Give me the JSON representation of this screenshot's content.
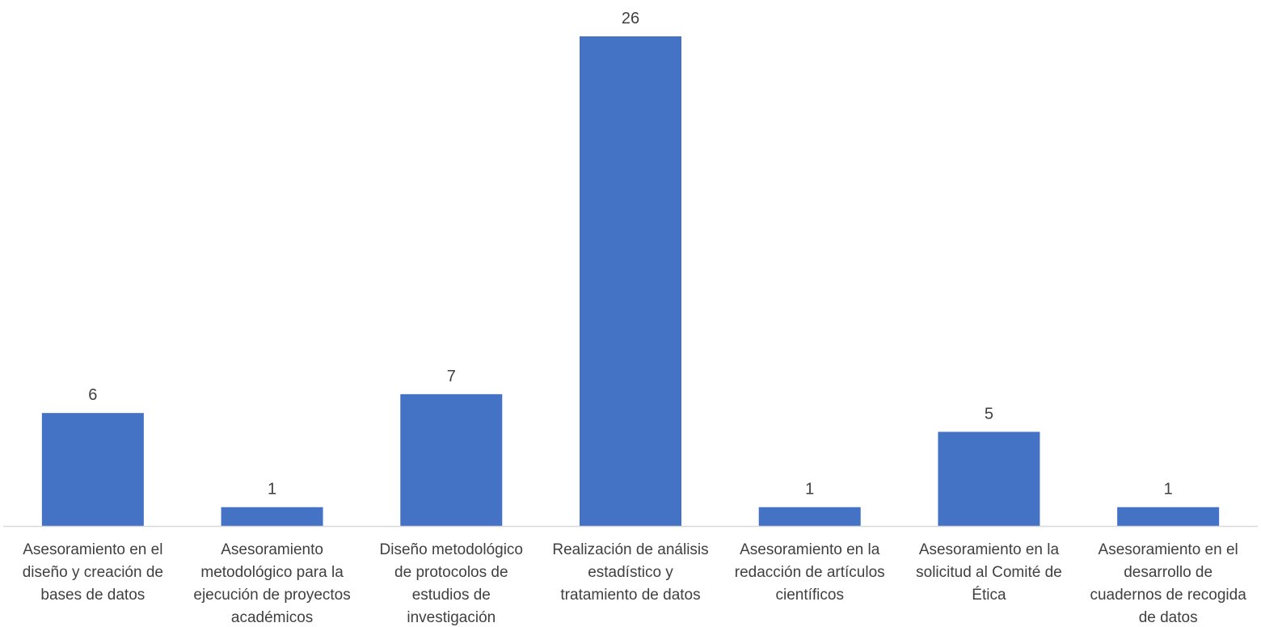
{
  "chart_data": {
    "type": "bar",
    "categories": [
      [
        "Asesoramiento en el",
        "diseño y creación de",
        "bases de datos"
      ],
      [
        "Asesoramiento",
        "metodológico para la",
        "ejecución de proyectos",
        "académicos"
      ],
      [
        "Diseño metodológico",
        "de protocolos de",
        "estudios de",
        "investigación"
      ],
      [
        "Realización de análisis",
        "estadístico y",
        "tratamiento de datos"
      ],
      [
        "Asesoramiento en la",
        "redacción de artículos",
        "científicos"
      ],
      [
        "Asesoramiento en la",
        "solicitud al Comité de",
        "Ética"
      ],
      [
        "Asesoramiento en el",
        "desarrollo de",
        "cuadernos de recogida",
        "de datos"
      ]
    ],
    "values": [
      6,
      1,
      7,
      26,
      1,
      5,
      1
    ],
    "data_labels": [
      "6",
      "1",
      "7",
      "26",
      "1",
      "5",
      "1"
    ],
    "ylim": [
      0,
      26
    ],
    "grid": false,
    "legend": "none",
    "bar_color": "#4472C4",
    "axis_color": "#D9D9D9",
    "text_color": "#404040"
  }
}
